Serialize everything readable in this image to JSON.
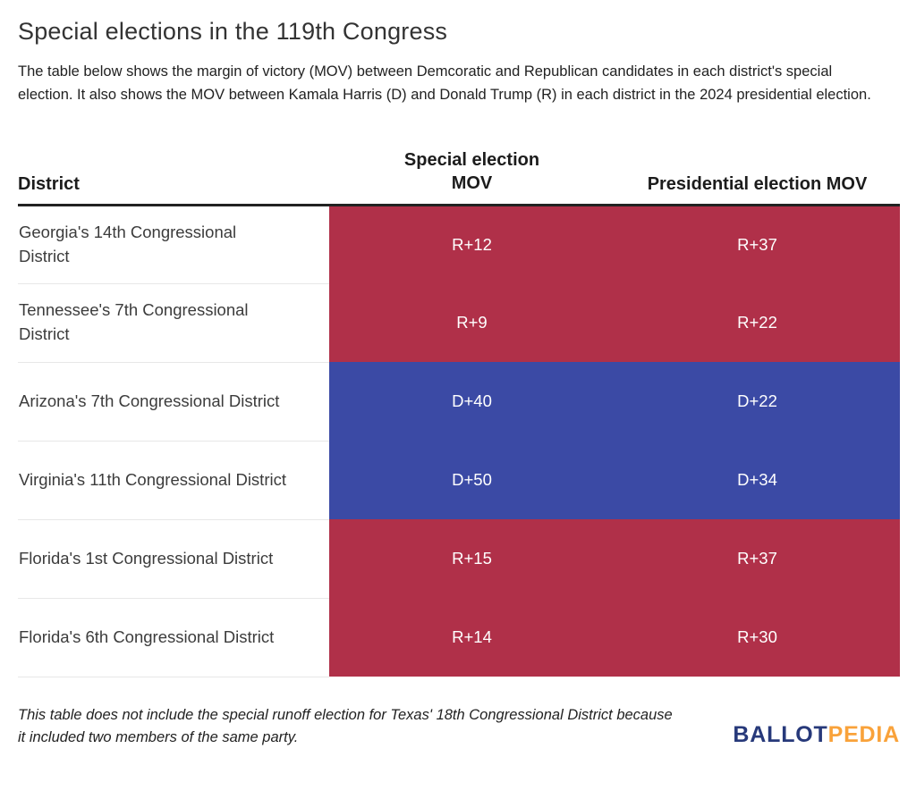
{
  "page": {
    "title": "Special elections in the 119th Congress",
    "description": "The table below shows the margin of victory (MOV) between Demcoratic and Republican candidates in each district's special election. It also shows the MOV between Kamala Harris (D) and Donald Trump (R) in each district in the 2024 presidential election.",
    "footnote": "This table does not include the special runoff election for Texas' 18th Congressional District because it included two members of the same party.",
    "logo": {
      "part1": "BALLOT",
      "part2": "PEDIA"
    }
  },
  "chart_data": {
    "type": "table",
    "title": "Special elections in the 119th Congress",
    "columns": [
      "District",
      "Special election MOV",
      "Presidential election MOV"
    ],
    "rows": [
      {
        "district": "Georgia's 14th Congressional District",
        "special_mov": "R+12",
        "presidential_mov": "R+37",
        "party": "R"
      },
      {
        "district": "Tennessee's 7th Congressional District",
        "special_mov": "R+9",
        "presidential_mov": "R+22",
        "party": "R"
      },
      {
        "district": "Arizona's 7th Congressional District",
        "special_mov": "D+40",
        "presidential_mov": "D+22",
        "party": "D"
      },
      {
        "district": "Virginia's 11th Congressional District",
        "special_mov": "D+50",
        "presidential_mov": "D+34",
        "party": "D"
      },
      {
        "district": "Florida's 1st Congressional District",
        "special_mov": "R+15",
        "presidential_mov": "R+37",
        "party": "R"
      },
      {
        "district": "Florida's 6th Congressional District",
        "special_mov": "R+14",
        "presidential_mov": "R+30",
        "party": "R"
      }
    ],
    "party_colors": {
      "R": "#b03049",
      "D": "#3b4aa5"
    }
  }
}
